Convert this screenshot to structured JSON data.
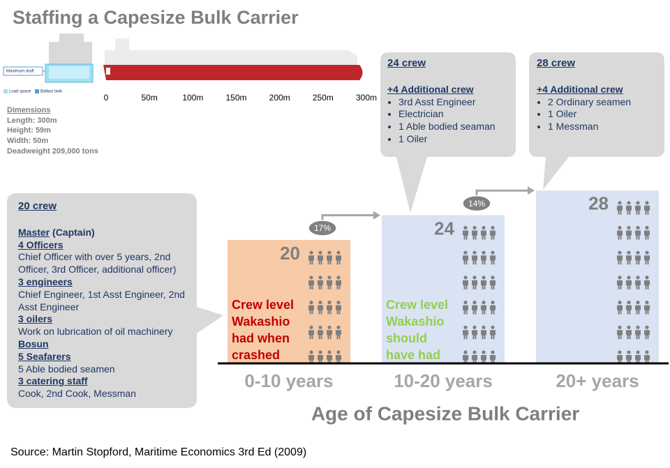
{
  "title": "Staffing a Capesize Bulk Carrier",
  "ship": {
    "draft_label": "Maximum draft",
    "legend": [
      "Load space",
      "Ballast tank"
    ],
    "scale_ticks": [
      0,
      {
        "value": 50,
        "label": "50m"
      },
      {
        "value": 100,
        "label": "100m"
      },
      {
        "value": 150,
        "label": "150m"
      },
      {
        "value": 200,
        "label": "200m"
      },
      {
        "value": 250,
        "label": "250m"
      },
      {
        "value": 300,
        "label": "300m"
      }
    ]
  },
  "dimensions": {
    "heading": "Dimensions",
    "lines": [
      "Length: 300m",
      "Height: 59m",
      "Width: 50m",
      "Deadweight 209,000 tons"
    ]
  },
  "chart_data": {
    "type": "bar",
    "categories": [
      "0-10 years",
      "10-20 years",
      "20+ years"
    ],
    "values": [
      20,
      24,
      28
    ],
    "colors": [
      "#f8cba8",
      "#dae3f3",
      "#dae3f3"
    ],
    "xlabel": "Age of Capesize Bulk Carrier",
    "growth": {
      "values": [
        17,
        14
      ],
      "value_labels": [
        "17%",
        "14%"
      ]
    },
    "annotations": [
      {
        "lines": [
          "Crew level",
          "Wakashio",
          "had when",
          "crashed"
        ],
        "color": "#c00000"
      },
      {
        "lines": [
          "Crew level",
          "Wakashio",
          "should",
          "have had"
        ],
        "color": "#92d050"
      }
    ]
  },
  "callouts": [
    {
      "title": "20 crew",
      "sections": [
        {
          "heading": "Master",
          "note": " (Captain)"
        },
        {
          "heading": "4 Officers",
          "detail": "Chief Officer with over 5 years, 2nd Officer, 3rd Officer, additional officer)"
        },
        {
          "heading": "3 engineers",
          "detail": "Chief Engineer, 1st Asst Engineer, 2nd Asst Engineer"
        },
        {
          "heading": "3 oilers",
          "detail": "Work on lubrication of oil machinery"
        },
        {
          "heading": "Bosun"
        },
        {
          "heading": "5 Seafarers",
          "detail": "5 Able bodied seamen"
        },
        {
          "heading": "3 catering staff",
          "detail": "Cook, 2nd Cook, Messman"
        }
      ]
    },
    {
      "title": "24 crew",
      "subtitle": "+4 Additional crew",
      "items": [
        "3rd Asst Engineer",
        "Electrician",
        "1 Able bodied seaman",
        "1 Oiler"
      ]
    },
    {
      "title": "28 crew",
      "subtitle": "+4 Additional crew",
      "items": [
        "2 Ordinary seamen",
        "1 Oiler",
        "1 Messman"
      ]
    }
  ],
  "source": "Source: Martin Stopford, Maritime Economics 3rd Ed (2009)"
}
